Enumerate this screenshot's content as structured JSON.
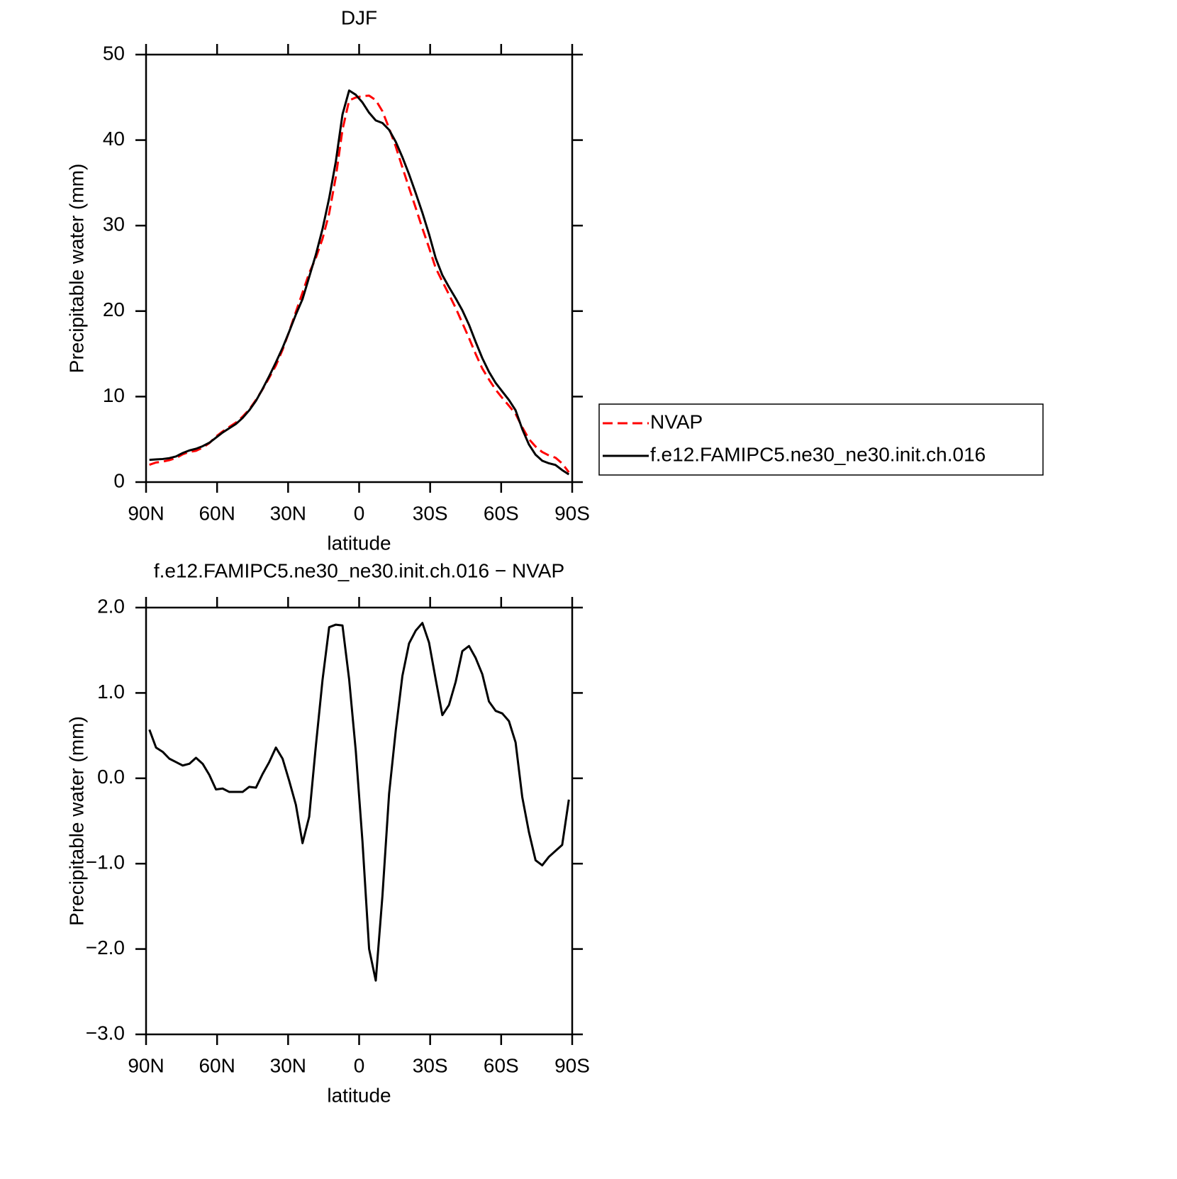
{
  "chart_data": [
    {
      "type": "line",
      "title": "DJF",
      "x_label": "latitude",
      "y_label": "Precipitable water (mm)",
      "x": [
        88.59,
        85.78,
        82.97,
        80.16,
        77.34,
        74.53,
        71.72,
        68.91,
        66.09,
        63.28,
        60.47,
        57.66,
        54.84,
        52.03,
        49.22,
        46.41,
        43.59,
        40.78,
        37.97,
        35.16,
        32.34,
        29.53,
        26.72,
        23.91,
        21.09,
        18.28,
        15.47,
        12.66,
        9.84,
        7.03,
        4.22,
        1.41,
        -1.41,
        -4.22,
        -7.03,
        -9.84,
        -12.66,
        -15.47,
        -18.28,
        -21.09,
        -23.91,
        -26.72,
        -29.53,
        -32.34,
        -35.16,
        -37.97,
        -40.78,
        -43.59,
        -46.41,
        -49.22,
        -52.03,
        -54.84,
        -57.66,
        -60.47,
        -63.28,
        -66.09,
        -68.91,
        -71.72,
        -74.53,
        -77.34,
        -80.16,
        -82.97,
        -85.78,
        -88.59
      ],
      "series": [
        {
          "name": "NVAP",
          "color": "#ff0000",
          "style": "dashed",
          "values": [
            2.03,
            2.29,
            2.39,
            2.57,
            2.81,
            3.25,
            3.53,
            3.66,
            4.03,
            4.56,
            5.33,
            5.92,
            6.46,
            6.96,
            7.66,
            8.5,
            9.61,
            10.85,
            12.21,
            13.64,
            15.47,
            17.63,
            19.91,
            22.16,
            24.45,
            26.22,
            28.45,
            31.43,
            35.7,
            41.21,
            44.64,
            44.98,
            45.14,
            45.2,
            44.67,
            43.38,
            41.38,
            39.24,
            36.8,
            34.42,
            32.07,
            29.68,
            27.41,
            25.04,
            23.46,
            21.94,
            20.37,
            18.61,
            16.85,
            14.99,
            13.28,
            12.0,
            10.81,
            9.84,
            8.93,
            7.98,
            6.42,
            5.03,
            4.16,
            3.52,
            3.12,
            2.85,
            2.18,
            1.15
          ]
        },
        {
          "name": "f.e12.FAMIPC5.ne30_ne30.init.ch.016",
          "color": "#000000",
          "style": "solid",
          "values": [
            2.6,
            2.65,
            2.7,
            2.8,
            3.0,
            3.4,
            3.7,
            3.9,
            4.2,
            4.6,
            5.2,
            5.8,
            6.3,
            6.8,
            7.5,
            8.4,
            9.5,
            10.9,
            12.4,
            14,
            15.7,
            17.6,
            19.6,
            21.4,
            24,
            26.6,
            29.6,
            33.2,
            37.5,
            43,
            45.8,
            45.3,
            44.4,
            43.2,
            42.3,
            42,
            41.2,
            39.8,
            38,
            36,
            33.8,
            31.5,
            29,
            26.2,
            24.2,
            22.8,
            21.5,
            20.1,
            18.4,
            16.4,
            14.5,
            12.9,
            11.6,
            10.6,
            9.6,
            8.4,
            6.2,
            4.4,
            3.2,
            2.5,
            2.2,
            2.0,
            1.4,
            0.9
          ]
        }
      ],
      "xlim": [
        90,
        -90
      ],
      "xticks": [
        {
          "value": 90,
          "label": "90N"
        },
        {
          "value": 60,
          "label": "60N"
        },
        {
          "value": 30,
          "label": "30N"
        },
        0,
        {
          "value": -30,
          "label": "30S"
        },
        {
          "value": -60,
          "label": "60S"
        },
        {
          "value": -90,
          "label": "90S"
        }
      ],
      "ylim": [
        0,
        50
      ],
      "yticks": [
        0,
        10,
        20,
        30,
        40,
        50
      ],
      "legend": "right"
    },
    {
      "type": "line",
      "title": "f.e12.FAMIPC5.ne30_ne30.init.ch.016 − NVAP",
      "x_label": "latitude",
      "y_label": "Precipitable water (mm)",
      "x": [
        88.59,
        85.78,
        82.97,
        80.16,
        77.34,
        74.53,
        71.72,
        68.91,
        66.09,
        63.28,
        60.47,
        57.66,
        54.84,
        52.03,
        49.22,
        46.41,
        43.59,
        40.78,
        37.97,
        35.16,
        32.34,
        29.53,
        26.72,
        23.91,
        21.09,
        18.28,
        15.47,
        12.66,
        9.84,
        7.03,
        4.22,
        1.41,
        -1.41,
        -4.22,
        -7.03,
        -9.84,
        -12.66,
        -15.47,
        -18.28,
        -21.09,
        -23.91,
        -26.72,
        -29.53,
        -32.34,
        -35.16,
        -37.97,
        -40.78,
        -43.59,
        -46.41,
        -49.22,
        -52.03,
        -54.84,
        -57.66,
        -60.47,
        -63.28,
        -66.09,
        -68.91,
        -71.72,
        -74.53,
        -77.34,
        -80.16,
        -82.97,
        -85.78,
        -88.59
      ],
      "series": [
        {
          "color": "#000000",
          "style": "solid",
          "values": [
            0.57,
            0.36,
            0.31,
            0.23,
            0.19,
            0.15,
            0.17,
            0.24,
            0.17,
            0.04,
            -0.13,
            -0.12,
            -0.16,
            -0.16,
            -0.16,
            -0.1,
            -0.11,
            0.05,
            0.19,
            0.36,
            0.23,
            -0.03,
            -0.31,
            -0.76,
            -0.45,
            0.38,
            1.15,
            1.77,
            1.8,
            1.79,
            1.16,
            0.32,
            -0.74,
            -2.0,
            -2.37,
            -1.38,
            -0.18,
            0.56,
            1.2,
            1.58,
            1.73,
            1.82,
            1.59,
            1.16,
            0.74,
            0.86,
            1.13,
            1.49,
            1.55,
            1.41,
            1.22,
            0.9,
            0.79,
            0.76,
            0.67,
            0.42,
            -0.22,
            -0.63,
            -0.96,
            -1.02,
            -0.92,
            -0.85,
            -0.78,
            -0.25
          ]
        }
      ],
      "xlim": [
        90,
        -90
      ],
      "xticks": [
        {
          "value": 90,
          "label": "90N"
        },
        {
          "value": 60,
          "label": "60N"
        },
        {
          "value": 30,
          "label": "30N"
        },
        0,
        {
          "value": -30,
          "label": "30S"
        },
        {
          "value": -60,
          "label": "60S"
        },
        {
          "value": -90,
          "label": "90S"
        }
      ],
      "ylim": [
        -3,
        2
      ],
      "yticks": [
        {
          "value": -3,
          "label": "−3.0"
        },
        {
          "value": -2,
          "label": "−2.0"
        },
        {
          "value": -1,
          "label": "−1.0"
        },
        {
          "value": 0,
          "label": "0.0"
        },
        {
          "value": 1,
          "label": "1.0"
        },
        {
          "value": 2,
          "label": "2.0"
        }
      ]
    }
  ]
}
